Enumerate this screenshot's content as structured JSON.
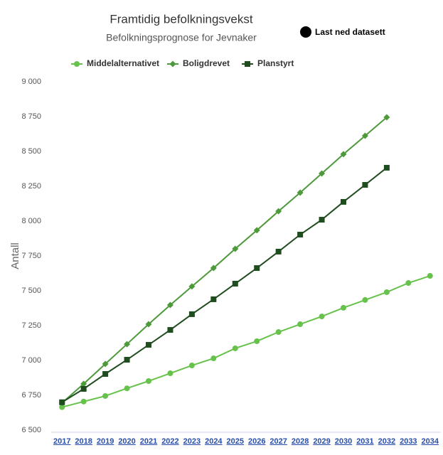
{
  "chart_data": {
    "type": "line",
    "title": "Framtidig befolkningsvekst",
    "subtitle": "Befolkningsprognose for Jevnaker",
    "download_label": "Last ned datasett",
    "ylabel": "Antall",
    "categories": [
      "2017",
      "2018",
      "2019",
      "2020",
      "2021",
      "2022",
      "2023",
      "2024",
      "2025",
      "2026",
      "2027",
      "2028",
      "2029",
      "2030",
      "2031",
      "2032",
      "2033",
      "2034"
    ],
    "series": [
      {
        "name": "Middelalternativet",
        "color": "#66c24a",
        "marker": "circle",
        "values": [
          6665,
          6705,
          6745,
          6800,
          6852,
          6908,
          6964,
          7015,
          7087,
          7138,
          7204,
          7260,
          7316,
          7378,
          7434,
          7490,
          7556,
          7607
        ]
      },
      {
        "name": "Boligdrevet",
        "color": "#4c9a3a",
        "marker": "diamond",
        "values": [
          6695,
          6832,
          6975,
          7117,
          7260,
          7398,
          7531,
          7663,
          7801,
          7934,
          8071,
          8204,
          8342,
          8480,
          8612,
          8745,
          null,
          null
        ]
      },
      {
        "name": "Planstyrt",
        "color": "#1f4d1f",
        "marker": "square",
        "values": [
          6700,
          6796,
          6903,
          7005,
          7112,
          7219,
          7332,
          7439,
          7551,
          7663,
          7781,
          7903,
          8010,
          8138,
          8260,
          8383,
          null,
          null
        ]
      }
    ],
    "ylim": [
      6500,
      9000
    ],
    "yticks": [
      {
        "value": 6500,
        "label": "6 500"
      },
      {
        "value": 6750,
        "label": "6 750"
      },
      {
        "value": 7000,
        "label": "7 000"
      },
      {
        "value": 7250,
        "label": "7 250"
      },
      {
        "value": 7500,
        "label": "7 500"
      },
      {
        "value": 7750,
        "label": "7 750"
      },
      {
        "value": 8000,
        "label": "8 000"
      },
      {
        "value": 8250,
        "label": "8 250"
      },
      {
        "value": 8500,
        "label": "8 500"
      },
      {
        "value": 8750,
        "label": "8 750"
      },
      {
        "value": 9000,
        "label": "9 000"
      }
    ],
    "grid": false
  }
}
